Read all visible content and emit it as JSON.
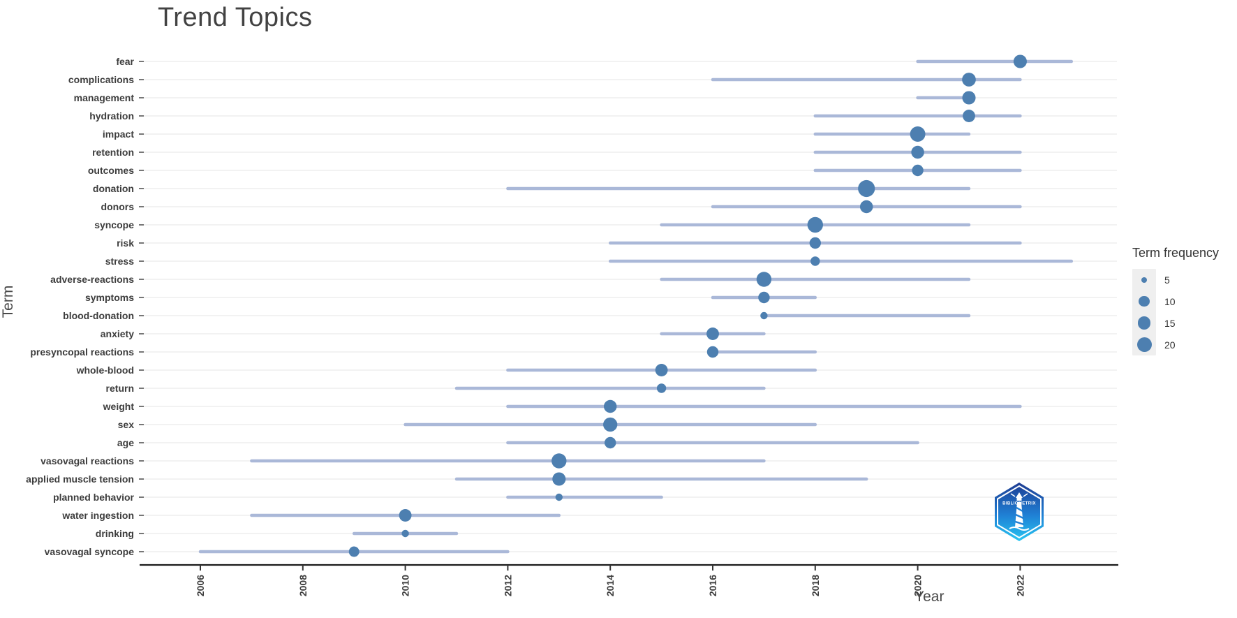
{
  "title": "Trend Topics",
  "y_axis": {
    "label": "Term"
  },
  "x_axis": {
    "label": "Year",
    "ticks": [
      2006,
      2008,
      2010,
      2012,
      2014,
      2016,
      2018,
      2020,
      2022
    ]
  },
  "legend": {
    "title": "Term frequency",
    "sizes": [
      5,
      10,
      15,
      20
    ]
  },
  "logo": {
    "name": "bibliometrix-logo",
    "text": "BIBLIOMETRIX"
  },
  "colors": {
    "dot": "#4d7fb0",
    "range_line": "#aab8d8",
    "gridline": "#ebebeb",
    "axis_line": "#1a1a1a",
    "tick_text": "#3d3d3d",
    "term_text": "#3d3d3d",
    "title_text": "#424242",
    "legend_key_bg": "#efefef",
    "logo_top": "#1e3c92",
    "logo_bottom": "#28c6f2"
  },
  "chart_data": {
    "type": "scatter",
    "variant": "trend-topics-dot-range",
    "title": "Trend Topics",
    "xlabel": "Year",
    "ylabel": "Term",
    "x_ticks": [
      2006,
      2008,
      2010,
      2012,
      2014,
      2016,
      2018,
      2020,
      2022
    ],
    "xlim": [
      2004.8,
      2023.9
    ],
    "legend_title": "Term frequency",
    "legend_sizes": [
      5,
      10,
      15,
      20
    ],
    "terms": [
      {
        "term": "fear",
        "year_q1": 2020,
        "year_med": 2022,
        "year_q3": 2023,
        "freq": 12
      },
      {
        "term": "complications",
        "year_q1": 2016,
        "year_med": 2021,
        "year_q3": 2022,
        "freq": 13
      },
      {
        "term": "management",
        "year_q1": 2020,
        "year_med": 2021,
        "year_q3": 2021,
        "freq": 12
      },
      {
        "term": "hydration",
        "year_q1": 2018,
        "year_med": 2021,
        "year_q3": 2022,
        "freq": 10
      },
      {
        "term": "impact",
        "year_q1": 2018,
        "year_med": 2020,
        "year_q3": 2021,
        "freq": 17
      },
      {
        "term": "retention",
        "year_q1": 2018,
        "year_med": 2020,
        "year_q3": 2022,
        "freq": 11
      },
      {
        "term": "outcomes",
        "year_q1": 2018,
        "year_med": 2020,
        "year_q3": 2022,
        "freq": 9
      },
      {
        "term": "donation",
        "year_q1": 2012,
        "year_med": 2019,
        "year_q3": 2021,
        "freq": 22
      },
      {
        "term": "donors",
        "year_q1": 2016,
        "year_med": 2019,
        "year_q3": 2022,
        "freq": 11
      },
      {
        "term": "syncope",
        "year_q1": 2015,
        "year_med": 2018,
        "year_q3": 2021,
        "freq": 18
      },
      {
        "term": "risk",
        "year_q1": 2014,
        "year_med": 2018,
        "year_q3": 2022,
        "freq": 9
      },
      {
        "term": "stress",
        "year_q1": 2014,
        "year_med": 2018,
        "year_q3": 2023,
        "freq": 7
      },
      {
        "term": "adverse-reactions",
        "year_q1": 2015,
        "year_med": 2017,
        "year_q3": 2021,
        "freq": 16
      },
      {
        "term": "symptoms",
        "year_q1": 2016,
        "year_med": 2017,
        "year_q3": 2018,
        "freq": 9
      },
      {
        "term": "blood-donation",
        "year_q1": 2017,
        "year_med": 2017,
        "year_q3": 2021,
        "freq": 5
      },
      {
        "term": "anxiety",
        "year_q1": 2015,
        "year_med": 2016,
        "year_q3": 2017,
        "freq": 10
      },
      {
        "term": "presyncopal reactions",
        "year_q1": 2016,
        "year_med": 2016,
        "year_q3": 2018,
        "freq": 9
      },
      {
        "term": "whole-blood",
        "year_q1": 2012,
        "year_med": 2015,
        "year_q3": 2018,
        "freq": 10
      },
      {
        "term": "return",
        "year_q1": 2011,
        "year_med": 2015,
        "year_q3": 2017,
        "freq": 7
      },
      {
        "term": "weight",
        "year_q1": 2012,
        "year_med": 2014,
        "year_q3": 2022,
        "freq": 11
      },
      {
        "term": "sex",
        "year_q1": 2010,
        "year_med": 2014,
        "year_q3": 2018,
        "freq": 14
      },
      {
        "term": "age",
        "year_q1": 2012,
        "year_med": 2014,
        "year_q3": 2020,
        "freq": 9
      },
      {
        "term": "vasovagal reactions",
        "year_q1": 2007,
        "year_med": 2013,
        "year_q3": 2017,
        "freq": 16
      },
      {
        "term": "applied muscle tension",
        "year_q1": 2011,
        "year_med": 2013,
        "year_q3": 2019,
        "freq": 12
      },
      {
        "term": "planned behavior",
        "year_q1": 2012,
        "year_med": 2013,
        "year_q3": 2015,
        "freq": 5
      },
      {
        "term": "water ingestion",
        "year_q1": 2007,
        "year_med": 2010,
        "year_q3": 2013,
        "freq": 10
      },
      {
        "term": "drinking",
        "year_q1": 2009,
        "year_med": 2010,
        "year_q3": 2011,
        "freq": 5
      },
      {
        "term": "vasovagal syncope",
        "year_q1": 2006,
        "year_med": 2009,
        "year_q3": 2012,
        "freq": 8
      }
    ]
  }
}
